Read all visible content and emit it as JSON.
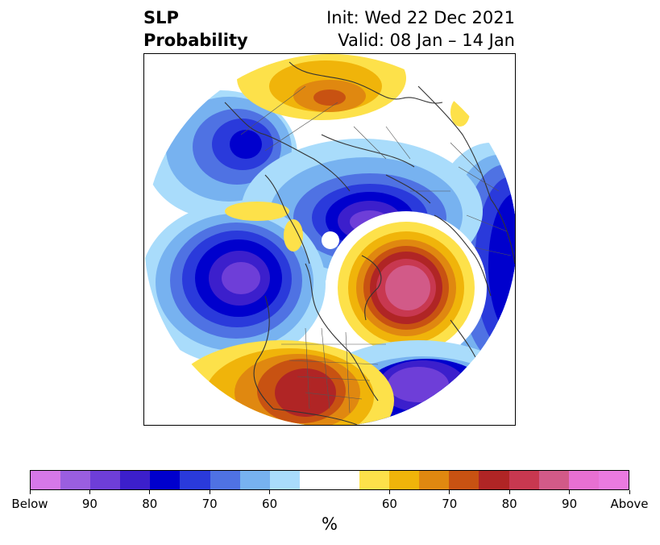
{
  "title": {
    "left_line1": "SLP",
    "left_line2": "Probability",
    "right_line1": "Init: Wed 22 Dec 2021",
    "right_line2": "Valid: 08 Jan – 14 Jan"
  },
  "map": {
    "projection": "north-polar-stereographic",
    "features": [
      "coastlines",
      "country-borders",
      "state-borders",
      "probability-contours"
    ],
    "anomalies": [
      {
        "region": "alaska-gulf-pacific",
        "category": "below",
        "peak": "90+"
      },
      {
        "region": "north-atlantic-greenland",
        "category": "above",
        "peak": "90+"
      },
      {
        "region": "arctic-north-russia",
        "category": "below",
        "peak": "90+"
      },
      {
        "region": "europe-scandinavia",
        "category": "below",
        "peak": "80"
      },
      {
        "region": "western-north-america",
        "category": "above",
        "peak": "80"
      },
      {
        "region": "central-asia",
        "category": "above",
        "peak": "70"
      },
      {
        "region": "kamchatka-east-siberia",
        "category": "below",
        "peak": "80"
      }
    ]
  },
  "colorbar": {
    "colors": [
      "#d678e8",
      "#9a5ee0",
      "#6e3ed8",
      "#3c1fcc",
      "#0000cd",
      "#2a3adb",
      "#4f72e3",
      "#77b2f0",
      "#a9dcfb",
      "#ffffff",
      "#ffffff",
      "#fde14a",
      "#f0b40a",
      "#e08810",
      "#c85212",
      "#b02525",
      "#c83850",
      "#d25a88",
      "#e870d2",
      "#ea7ae0"
    ],
    "tick_labels": [
      "Below",
      "90",
      "80",
      "70",
      "60",
      "60",
      "70",
      "80",
      "90",
      "Above"
    ],
    "unit": "%"
  }
}
